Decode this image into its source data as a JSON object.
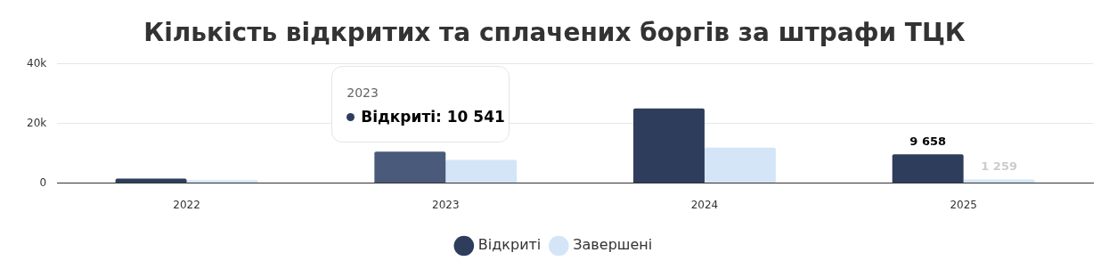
{
  "chart_data": {
    "type": "bar",
    "title": "Кількість відкритих та сплачених боргів за штрафи ТЦК",
    "categories": [
      "2022",
      "2023",
      "2024",
      "2025"
    ],
    "series": [
      {
        "name": "Відкриті",
        "color": "#2e3d5c",
        "colors": [
          "#2e3d5c",
          "#4a5a7a",
          "#2e3d5c",
          "#2e3d5c"
        ],
        "values": [
          1500,
          10541,
          25000,
          9658
        ],
        "value_labels": [
          null,
          null,
          null,
          "9 658"
        ]
      },
      {
        "name": "Завершені",
        "color": "#d4e5f8",
        "values": [
          1000,
          7800,
          11900,
          1259
        ],
        "value_labels": [
          null,
          null,
          null,
          "1 259"
        ]
      }
    ],
    "ylim": [
      0,
      40000
    ],
    "yticks": [
      {
        "value": 0,
        "label": "0"
      },
      {
        "value": 20000,
        "label": "20k"
      },
      {
        "value": 40000,
        "label": "40k"
      }
    ],
    "grid": "y",
    "legend": "bottom",
    "annotations": [
      {
        "text": "2023\nВідкриті: 10 541",
        "x": "2023",
        "y": 10541
      }
    ]
  }
}
